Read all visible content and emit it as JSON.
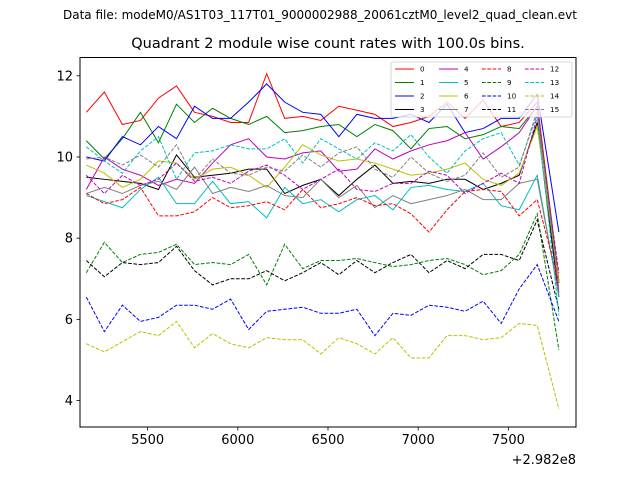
{
  "suptitle": "Data file: modeM0/AS1T03_117T01_9000002988_20061cztM0_level2_quad_clean.evt",
  "chart_data": {
    "type": "line",
    "title": "Quadrant 2 module wise count rates with 100.0s bins.",
    "xlabel": "",
    "ylabel": "",
    "x_offset_label": "+2.982e8",
    "xlim": [
      5125,
      7875
    ],
    "ylim": [
      3.35,
      12.45
    ],
    "xticks": [
      5500,
      6000,
      6500,
      7000,
      7500
    ],
    "yticks": [
      4,
      6,
      8,
      10,
      12
    ],
    "x": [
      5160,
      5260,
      5360,
      5460,
      5560,
      5660,
      5760,
      5860,
      5960,
      6060,
      6160,
      6260,
      6360,
      6460,
      6560,
      6660,
      6760,
      6860,
      6960,
      7060,
      7160,
      7260,
      7360,
      7460,
      7560,
      7660,
      7780
    ],
    "legend_position": "top-right",
    "series": [
      {
        "name": "0",
        "color": "#ff0000",
        "dash": "solid",
        "values": [
          11.1,
          11.6,
          10.8,
          10.9,
          11.45,
          11.75,
          11.1,
          11.0,
          10.85,
          10.85,
          12.05,
          10.95,
          11.0,
          10.9,
          11.25,
          11.15,
          11.05,
          10.75,
          10.85,
          11.0,
          11.35,
          10.95,
          11.4,
          10.75,
          10.85,
          11.35,
          6.95
        ]
      },
      {
        "name": "1",
        "color": "#008000",
        "dash": "solid",
        "values": [
          10.4,
          9.95,
          10.45,
          11.1,
          10.35,
          11.3,
          10.85,
          11.2,
          10.95,
          10.8,
          11.0,
          10.6,
          10.65,
          10.75,
          10.8,
          10.5,
          10.8,
          10.65,
          10.2,
          10.7,
          10.75,
          10.45,
          10.55,
          10.75,
          10.7,
          11.25,
          6.9
        ]
      },
      {
        "name": "2",
        "color": "#0000ff",
        "dash": "solid",
        "values": [
          10.0,
          9.9,
          10.5,
          10.3,
          10.75,
          10.45,
          11.25,
          10.95,
          10.95,
          11.35,
          11.8,
          11.35,
          11.1,
          11.05,
          10.5,
          11.05,
          10.95,
          10.95,
          11.05,
          10.85,
          11.3,
          10.6,
          10.7,
          10.95,
          10.95,
          11.55,
          8.15
        ]
      },
      {
        "name": "3",
        "color": "#000000",
        "dash": "solid",
        "values": [
          9.5,
          9.45,
          9.4,
          9.35,
          9.2,
          10.05,
          9.5,
          9.55,
          9.6,
          9.7,
          9.7,
          9.1,
          9.3,
          9.45,
          9.05,
          9.45,
          9.8,
          9.35,
          9.4,
          9.35,
          9.45,
          9.45,
          9.2,
          9.35,
          9.55,
          10.85,
          6.55
        ]
      },
      {
        "name": "4",
        "color": "#bf00bf",
        "dash": "solid",
        "values": [
          9.2,
          10.0,
          9.7,
          9.55,
          9.3,
          9.45,
          9.35,
          9.85,
          10.3,
          10.45,
          10.0,
          9.95,
          10.1,
          10.15,
          9.65,
          9.7,
          10.2,
          9.95,
          10.15,
          10.3,
          10.4,
          10.6,
          9.95,
          10.25,
          10.6,
          11.25,
          6.65
        ]
      },
      {
        "name": "5",
        "color": "#00bfbf",
        "dash": "solid",
        "values": [
          9.05,
          8.9,
          8.75,
          9.2,
          9.5,
          8.85,
          8.85,
          9.4,
          8.85,
          8.9,
          8.5,
          9.25,
          8.85,
          8.95,
          8.65,
          8.95,
          9.05,
          8.7,
          9.25,
          9.3,
          9.2,
          9.15,
          9.35,
          8.8,
          8.7,
          9.55,
          6.55
        ]
      },
      {
        "name": "6",
        "color": "#bfbf00",
        "dash": "solid",
        "values": [
          9.8,
          9.6,
          9.25,
          9.45,
          9.9,
          9.85,
          9.45,
          9.7,
          9.75,
          9.55,
          9.25,
          9.75,
          10.3,
          10.05,
          9.9,
          9.95,
          9.85,
          9.7,
          9.55,
          9.6,
          9.7,
          9.85,
          9.45,
          9.3,
          9.6,
          10.75,
          6.9
        ]
      },
      {
        "name": "7",
        "color": "#808080",
        "dash": "solid",
        "values": [
          9.1,
          9.25,
          9.1,
          9.3,
          9.4,
          9.2,
          9.75,
          9.1,
          9.25,
          9.15,
          9.3,
          9.05,
          9.0,
          9.45,
          9.0,
          9.3,
          8.75,
          9.05,
          8.85,
          8.95,
          9.05,
          9.2,
          8.95,
          8.95,
          9.35,
          9.45,
          6.6
        ]
      },
      {
        "name": "8",
        "color": "#ff0000",
        "dash": "dashed",
        "values": [
          9.1,
          8.85,
          8.95,
          9.25,
          8.55,
          8.55,
          8.65,
          9.0,
          8.75,
          8.8,
          8.9,
          8.7,
          9.2,
          8.75,
          8.85,
          9.0,
          8.8,
          8.85,
          8.6,
          8.15,
          8.7,
          9.15,
          9.2,
          9.15,
          8.55,
          8.95,
          6.9
        ]
      },
      {
        "name": "9",
        "color": "#008000",
        "dash": "dashed",
        "values": [
          7.15,
          7.9,
          7.4,
          7.6,
          7.65,
          7.85,
          7.35,
          7.4,
          7.35,
          7.6,
          6.85,
          7.85,
          7.25,
          7.45,
          7.45,
          7.5,
          7.4,
          7.3,
          7.35,
          7.45,
          7.5,
          7.35,
          7.1,
          7.2,
          7.6,
          8.6,
          5.25
        ]
      },
      {
        "name": "10",
        "color": "#0000ff",
        "dash": "dashed",
        "values": [
          6.55,
          5.7,
          6.35,
          5.95,
          6.05,
          6.35,
          6.35,
          6.25,
          6.5,
          5.75,
          6.2,
          6.25,
          6.3,
          6.15,
          6.15,
          6.25,
          5.6,
          6.15,
          6.1,
          6.35,
          6.3,
          6.2,
          6.45,
          5.9,
          6.75,
          7.35,
          5.95
        ]
      },
      {
        "name": "11",
        "color": "#000000",
        "dash": "dashed",
        "values": [
          7.45,
          7.05,
          7.4,
          7.35,
          7.4,
          7.8,
          7.2,
          6.85,
          7.0,
          7.0,
          7.2,
          6.95,
          7.15,
          7.4,
          7.1,
          7.45,
          7.15,
          7.4,
          7.6,
          7.15,
          7.45,
          7.25,
          7.6,
          7.6,
          7.45,
          8.45,
          6.25
        ]
      },
      {
        "name": "12",
        "color": "#bf00bf",
        "dash": "dashed",
        "values": [
          9.55,
          9.1,
          9.55,
          9.3,
          9.45,
          9.85,
          9.4,
          9.5,
          9.35,
          9.65,
          9.8,
          9.55,
          9.2,
          9.45,
          9.7,
          9.2,
          9.15,
          9.35,
          9.35,
          9.65,
          9.55,
          9.1,
          9.35,
          9.6,
          9.35,
          11.0,
          7.15
        ]
      },
      {
        "name": "13",
        "color": "#00bfbf",
        "dash": "dashed",
        "values": [
          10.25,
          9.9,
          9.6,
          10.15,
          10.5,
          9.45,
          10.1,
          10.15,
          10.3,
          10.2,
          10.2,
          10.45,
          9.85,
          10.45,
          10.2,
          9.95,
          10.35,
          10.15,
          10.55,
          10.0,
          9.6,
          10.15,
          10.45,
          10.6,
          9.8,
          11.05,
          6.1
        ]
      },
      {
        "name": "14",
        "color": "#bfbf00",
        "dash": "dashed",
        "values": [
          5.4,
          5.2,
          5.45,
          5.7,
          5.6,
          5.95,
          5.3,
          5.65,
          5.4,
          5.3,
          5.55,
          5.5,
          5.5,
          5.15,
          5.55,
          5.4,
          5.15,
          5.55,
          5.05,
          5.05,
          5.6,
          5.6,
          5.5,
          5.55,
          5.9,
          5.85,
          3.8
        ]
      },
      {
        "name": "15",
        "color": "#808080",
        "dash": "dashed",
        "values": [
          9.95,
          10.0,
          9.8,
          10.05,
          9.75,
          10.3,
          9.45,
          9.95,
          9.6,
          9.55,
          9.75,
          9.65,
          10.05,
          9.75,
          10.1,
          10.25,
          9.7,
          9.5,
          10.0,
          9.6,
          9.4,
          9.55,
          10.1,
          9.5,
          9.75,
          11.15,
          6.75
        ]
      }
    ]
  }
}
